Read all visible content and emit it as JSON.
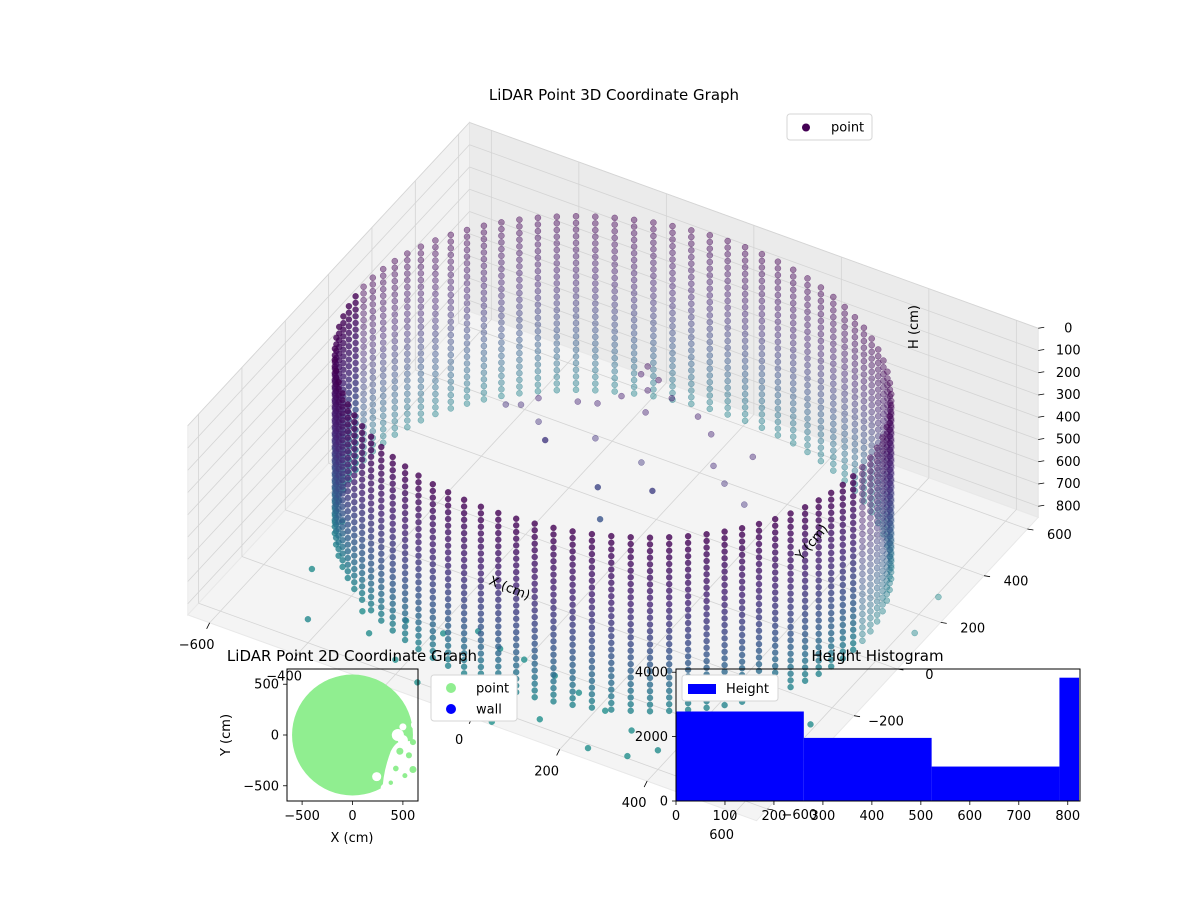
{
  "figure": {
    "background": "#ffffff"
  },
  "chart_data": [
    {
      "type": "scatter",
      "subtype": "3d",
      "title": "LiDAR Point 3D Coordinate Graph",
      "xlabel": "X (cm)",
      "ylabel": "Y (cm)",
      "zlabel": "H (cm)",
      "xlim": [
        -650,
        650
      ],
      "ylim": [
        -650,
        650
      ],
      "zlim": [
        850,
        0
      ],
      "xticks": [
        -600,
        -400,
        -200,
        0,
        200,
        400,
        600
      ],
      "yticks": [
        -600,
        -400,
        -200,
        0,
        200,
        400,
        600
      ],
      "zticks": [
        0,
        100,
        200,
        300,
        400,
        500,
        600,
        700,
        800
      ],
      "grid": true,
      "legend": {
        "placement": "upper-right",
        "entries": [
          "point"
        ]
      },
      "colormap": "viridis",
      "series": [
        {
          "name": "point",
          "color": "#440154",
          "cylinder_wall": {
            "radius": 570,
            "center": [
              0,
              0
            ],
            "h_top": 0,
            "h_bottom": 800,
            "angle_step_deg": 4,
            "h_step": 30
          },
          "floor_points": [
            [
              -420,
              -560,
              800
            ],
            [
              -300,
              -520,
              820
            ],
            [
              -260,
              -430,
              830
            ],
            [
              -180,
              -420,
              840
            ],
            [
              -120,
              -380,
              830
            ],
            [
              -60,
              -400,
              845
            ],
            [
              0,
              -410,
              840
            ],
            [
              80,
              -430,
              835
            ],
            [
              150,
              -460,
              830
            ],
            [
              220,
              -480,
              840
            ],
            [
              300,
              -520,
              830
            ],
            [
              380,
              -560,
              820
            ],
            [
              450,
              -600,
              810
            ],
            [
              520,
              -580,
              800
            ],
            [
              560,
              -470,
              815
            ],
            [
              600,
              -300,
              820
            ],
            [
              640,
              100,
              800
            ],
            [
              620,
              250,
              810
            ],
            [
              -500,
              -380,
              820
            ],
            [
              -520,
              -200,
              810
            ],
            [
              -150,
              -600,
              850
            ],
            [
              -50,
              -560,
              850
            ],
            [
              40,
              -640,
              850
            ],
            [
              120,
              -580,
              845
            ],
            [
              250,
              -620,
              840
            ],
            [
              330,
              -600,
              840
            ],
            [
              420,
              -480,
              830
            ],
            [
              480,
              -400,
              825
            ],
            [
              -350,
              -450,
              830
            ],
            [
              -220,
              -560,
              840
            ]
          ],
          "interior_points": [
            [
              0,
              160,
              120
            ],
            [
              30,
              150,
              150
            ],
            [
              -20,
              170,
              180
            ],
            [
              10,
              140,
              200
            ],
            [
              60,
              150,
              210
            ],
            [
              -40,
              120,
              240
            ],
            [
              20,
              110,
              260
            ],
            [
              -80,
              90,
              270
            ],
            [
              -120,
              80,
              280
            ],
            [
              120,
              150,
              250
            ],
            [
              160,
              130,
              280
            ],
            [
              -200,
              60,
              300
            ],
            [
              -230,
              40,
              330
            ],
            [
              -260,
              30,
              340
            ],
            [
              -180,
              20,
              350
            ],
            [
              200,
              60,
              320
            ],
            [
              240,
              30,
              340
            ],
            [
              -60,
              40,
              360
            ],
            [
              50,
              30,
              380
            ],
            [
              100,
              -20,
              420
            ],
            [
              -10,
              -50,
              450
            ],
            [
              20,
              -100,
              520
            ],
            [
              -150,
              -10,
              380
            ],
            [
              260,
              120,
              300
            ],
            [
              300,
              0,
              360
            ]
          ]
        }
      ]
    },
    {
      "type": "scatter",
      "title": "LiDAR Point 2D Coordinate Graph",
      "xlabel": "X (cm)",
      "ylabel": "Y (cm)",
      "xlim": [
        -650,
        650
      ],
      "ylim": [
        -650,
        650
      ],
      "xticks": [
        -500,
        0,
        500
      ],
      "yticks": [
        500,
        0,
        -500
      ],
      "grid": false,
      "legend": {
        "placement": "outside-upper-right",
        "entries": [
          "point",
          "wall"
        ]
      },
      "series": [
        {
          "name": "point",
          "color": "#90ee90",
          "region": {
            "shape": "disc",
            "center": [
              0,
              0
            ],
            "radius": 600
          }
        },
        {
          "name": "wall",
          "color": "#0000ff",
          "points": []
        }
      ],
      "gaps": [
        [
          450,
          0,
          60
        ],
        [
          500,
          -50,
          50
        ],
        [
          600,
          -150,
          55
        ],
        [
          560,
          -300,
          60
        ],
        [
          450,
          -400,
          55
        ],
        [
          240,
          -410,
          45
        ],
        [
          390,
          -440,
          40
        ],
        [
          320,
          -520,
          40
        ],
        [
          550,
          -450,
          45
        ],
        [
          420,
          -250,
          35
        ],
        [
          620,
          100,
          40
        ],
        [
          500,
          80,
          35
        ]
      ]
    },
    {
      "type": "bar",
      "subtype": "histogram",
      "title": "Height Histogram",
      "xlabel": "",
      "ylabel": "",
      "xlim": [
        0,
        825
      ],
      "ylim": [
        0,
        4100
      ],
      "xticks": [
        0,
        100,
        200,
        300,
        400,
        500,
        600,
        700,
        800
      ],
      "yticks": [
        0,
        2000,
        4000
      ],
      "grid": false,
      "legend": {
        "placement": "upper-left",
        "entries": [
          "Height"
        ]
      },
      "series": [
        {
          "name": "Height",
          "color": "#0000ff",
          "bins": [
            0,
            261,
            522,
            783,
            823
          ],
          "counts": [
            2780,
            1960,
            1070,
            3830
          ]
        }
      ]
    }
  ]
}
